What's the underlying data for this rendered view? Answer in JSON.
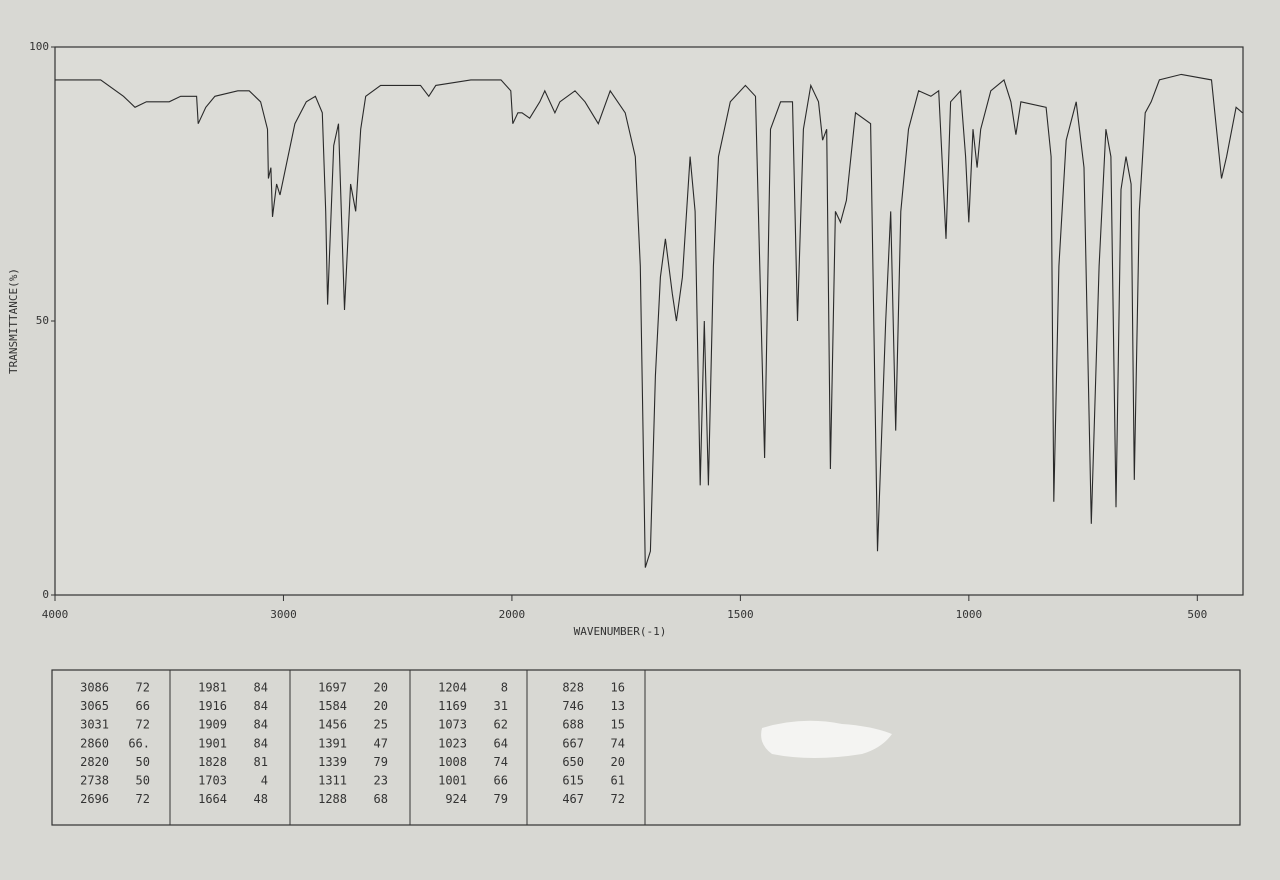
{
  "chart_data": {
    "type": "line",
    "xlabel": "WAVENUMBER(-1)",
    "ylabel": "TRANSMITTANCE(%)",
    "xscale": "tick-spaced",
    "xlim": [
      4000,
      400
    ],
    "xticks": [
      4000,
      3000,
      2000,
      1500,
      1000,
      500
    ],
    "ylim": [
      0,
      100
    ],
    "yticks": [
      0,
      50,
      100
    ],
    "color": "#2a2a2a",
    "x": [
      4000,
      3900,
      3800,
      3700,
      3650,
      3600,
      3500,
      3450,
      3380,
      3373,
      3340,
      3300,
      3200,
      3150,
      3100,
      3070,
      3066,
      3055,
      3048,
      3030,
      3015,
      2990,
      2950,
      2900,
      2860,
      2830,
      2815,
      2807,
      2780,
      2759,
      2733,
      2706,
      2684,
      2662,
      2640,
      2575,
      2400,
      2364,
      2333,
      2180,
      2048,
      2005,
      1998,
      1987,
      1978,
      1961,
      1939,
      1928,
      1906,
      1895,
      1862,
      1840,
      1811,
      1785,
      1752,
      1730,
      1719,
      1708,
      1697,
      1686,
      1675,
      1664,
      1649,
      1640,
      1627,
      1610,
      1599,
      1588,
      1579,
      1570,
      1559,
      1548,
      1522,
      1489,
      1467,
      1447,
      1434,
      1412,
      1386,
      1375,
      1362,
      1346,
      1329,
      1320,
      1311,
      1303,
      1292,
      1281,
      1268,
      1248,
      1215,
      1200,
      1182,
      1171,
      1160,
      1149,
      1132,
      1110,
      1083,
      1066,
      1050,
      1040,
      1018,
      1007,
      1000,
      991,
      982,
      974,
      952,
      923,
      908,
      897,
      886,
      831,
      820,
      814,
      803,
      787,
      765,
      748,
      732,
      715,
      700,
      689,
      678,
      667,
      656,
      645,
      638,
      627,
      614,
      601,
      583,
      535,
      469,
      458,
      447,
      436,
      415,
      401
    ],
    "values": [
      94,
      94,
      94,
      91,
      89,
      90,
      90,
      91,
      91,
      86,
      89,
      91,
      92,
      92,
      90,
      85,
      76,
      78,
      69,
      75,
      73,
      78,
      86,
      90,
      91,
      88,
      70,
      53,
      82,
      86,
      52,
      75,
      70,
      85,
      91,
      93,
      93,
      91,
      93,
      94,
      94,
      92,
      86,
      88,
      88,
      87,
      90,
      92,
      88,
      90,
      92,
      90,
      86,
      92,
      88,
      80,
      60,
      5,
      8,
      40,
      58,
      65,
      55,
      50,
      58,
      80,
      70,
      20,
      50,
      20,
      60,
      80,
      90,
      93,
      91,
      25,
      85,
      90,
      90,
      50,
      85,
      93,
      90,
      83,
      85,
      23,
      70,
      68,
      72,
      88,
      86,
      8,
      50,
      70,
      30,
      70,
      85,
      92,
      91,
      92,
      65,
      90,
      92,
      80,
      68,
      85,
      78,
      85,
      92,
      94,
      90,
      84,
      90,
      89,
      80,
      17,
      60,
      83,
      90,
      78,
      13,
      60,
      85,
      80,
      16,
      74,
      80,
      75,
      21,
      70,
      88,
      90,
      94,
      95,
      94,
      85,
      76,
      80,
      89,
      88
    ]
  },
  "peak_table": {
    "columns": [
      [
        [
          "3086",
          "72"
        ],
        [
          "3065",
          "66"
        ],
        [
          "3031",
          "72"
        ],
        [
          "2860",
          "66."
        ],
        [
          "2820",
          "50"
        ],
        [
          "2738",
          "50"
        ],
        [
          "2696",
          "72"
        ]
      ],
      [
        [
          "1981",
          "84"
        ],
        [
          "1916",
          "84"
        ],
        [
          "1909",
          "84"
        ],
        [
          "1901",
          "84"
        ],
        [
          "1828",
          "81"
        ],
        [
          "1703",
          "4"
        ],
        [
          "1664",
          "48"
        ]
      ],
      [
        [
          "1697",
          "20"
        ],
        [
          "1584",
          "20"
        ],
        [
          "1456",
          "25"
        ],
        [
          "1391",
          "47"
        ],
        [
          "1339",
          "79"
        ],
        [
          "1311",
          "23"
        ],
        [
          "1288",
          "68"
        ]
      ],
      [
        [
          "1204",
          "8"
        ],
        [
          "1169",
          "31"
        ],
        [
          "1073",
          "62"
        ],
        [
          "1023",
          "64"
        ],
        [
          "1008",
          "74"
        ],
        [
          "1001",
          "66"
        ],
        [
          "924",
          "79"
        ]
      ],
      [
        [
          "828",
          "16"
        ],
        [
          "746",
          "13"
        ],
        [
          "688",
          "15"
        ],
        [
          "667",
          "74"
        ],
        [
          "650",
          "20"
        ],
        [
          "615",
          "61"
        ],
        [
          "467",
          "72"
        ]
      ]
    ]
  }
}
